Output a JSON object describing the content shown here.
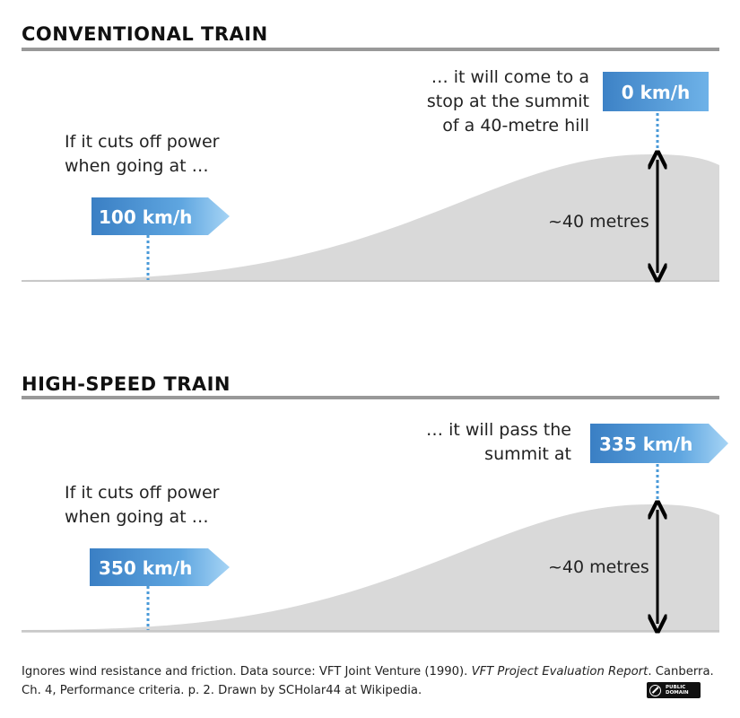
{
  "colors": {
    "box_dark": "#3d82c6",
    "box_light": "#8cc4ee",
    "hill": "#d9d9d9",
    "dotted": "#4a9ad8",
    "rule": "#999999"
  },
  "panels": {
    "conventional": {
      "heading": "CONVENTIONAL TRAIN",
      "start_caption": [
        "If it cuts off power",
        "when going at …"
      ],
      "start_speed": "100 km/h",
      "end_caption": [
        "… it will come to a",
        "stop at the summit",
        "of a 40-metre hill"
      ],
      "end_speed": "0 km/h",
      "height_label": "~40 metres"
    },
    "high_speed": {
      "heading": "HIGH-SPEED TRAIN",
      "start_caption": [
        "If it cuts off power",
        "when going at …"
      ],
      "start_speed": "350 km/h",
      "end_caption": [
        "… it will pass the",
        "summit at"
      ],
      "end_speed": "335 km/h",
      "height_label": "~40 metres"
    }
  },
  "footer": {
    "part1": "Ignores wind resistance and friction. Data source: VFT Joint Venture (1990). ",
    "title": "VFT Project Evaluation Report",
    "part2": ". Canberra.",
    "line2": "Ch. 4, Performance criteria. p. 2. Drawn by SCHolar44 at Wikipedia."
  },
  "badge": {
    "icon": "public-domain-icon",
    "text_line1": "PUBLIC",
    "text_line2": "DOMAIN"
  }
}
